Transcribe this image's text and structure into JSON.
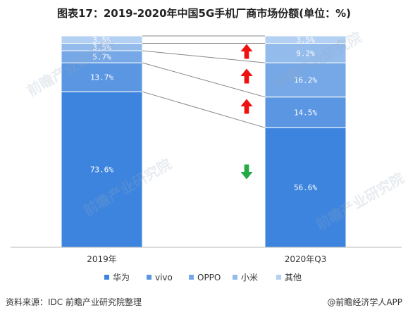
{
  "title": "图表17：2019-2020年中国5G手机厂商市场份额(单位：%)",
  "source": "资料来源：IDC 前瞻产业研究院整理",
  "credit": "@前瞻经济学人APP",
  "watermark": "前瞻产业研究院",
  "colors": {
    "华为": "#3d84de",
    "vivo": "#5a96e2",
    "OPPO": "#76a8e7",
    "小米": "#93bbec",
    "其他": "#b4d0f2",
    "up_arrow": "#ee1111",
    "down_arrow": "#22aa44",
    "connector": "#888888"
  },
  "chart_data": {
    "type": "bar",
    "stacked": true,
    "categories": [
      "2019年",
      "2020年Q3"
    ],
    "ylim": [
      0,
      100
    ],
    "series": [
      {
        "name": "华为",
        "values": [
          73.6,
          56.6
        ],
        "labels": [
          "73.6%",
          "56.6%"
        ]
      },
      {
        "name": "vivo",
        "values": [
          13.7,
          14.5
        ],
        "labels": [
          "13.7%",
          "14.5%"
        ]
      },
      {
        "name": "OPPO",
        "values": [
          5.7,
          16.2
        ],
        "labels": [
          "5.7%",
          "16.2%"
        ]
      },
      {
        "name": "小米",
        "values": [
          3.5,
          9.2
        ],
        "labels": [
          "3.5%",
          "9.2%"
        ]
      },
      {
        "name": "其他",
        "values": [
          3.5,
          3.5
        ],
        "labels": [
          "3.5%",
          "3.5%"
        ]
      }
    ],
    "trend": [
      "down",
      "up",
      "up",
      "up",
      "flat"
    ],
    "legend": "bottom"
  }
}
